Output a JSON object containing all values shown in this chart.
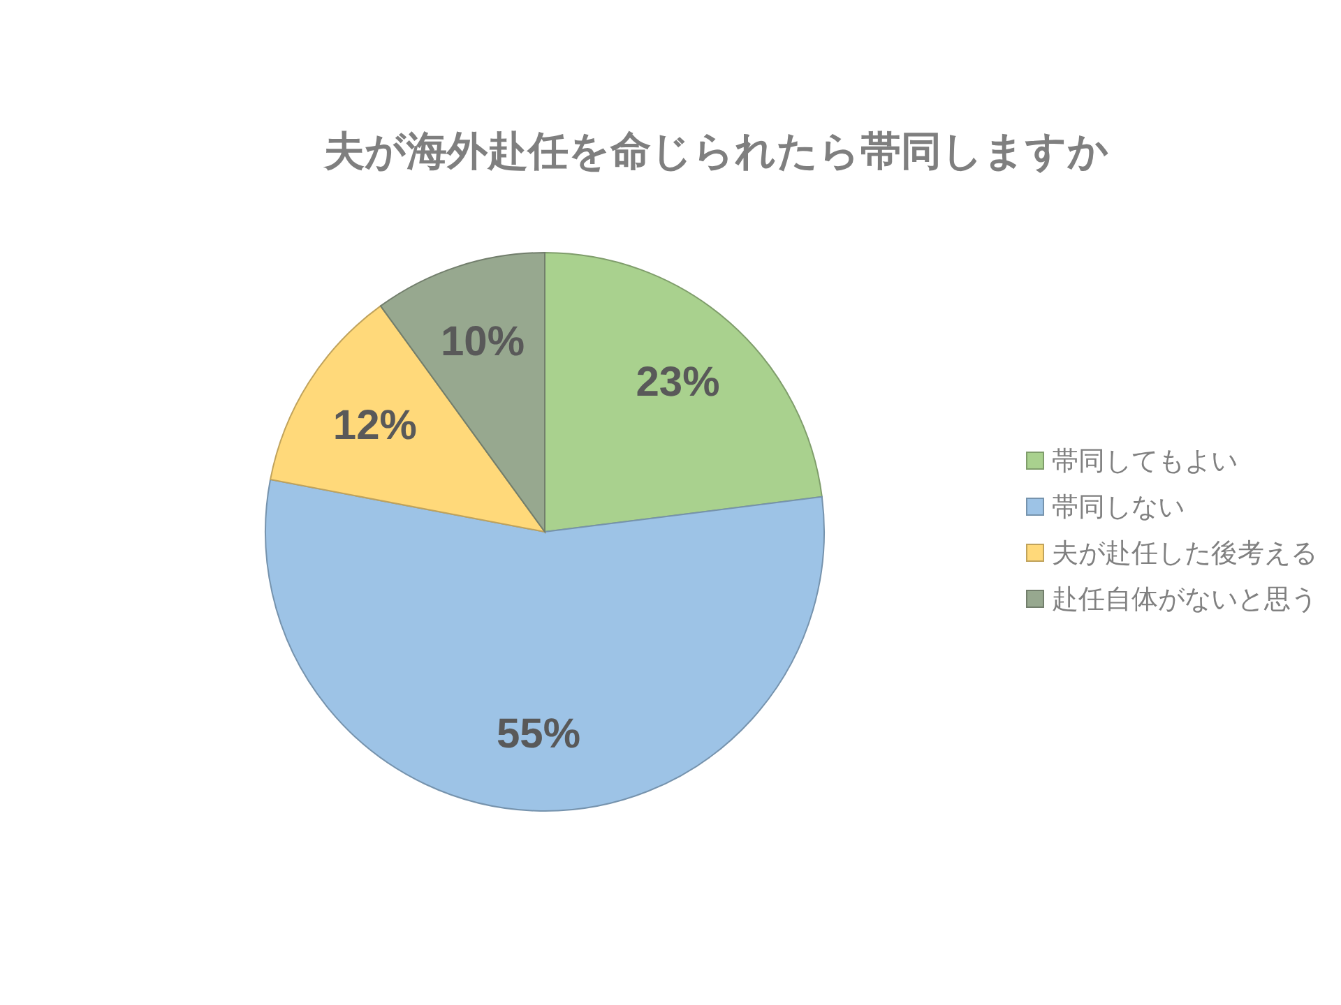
{
  "chart_data": {
    "type": "pie",
    "title": "夫が海外赴任を命じられたら帯同しますか",
    "categories": [
      "帯同してもよい",
      "帯同しない",
      "夫が赴任した後考える",
      "赴任自体がないと思う"
    ],
    "values": [
      23,
      55,
      12,
      10
    ],
    "colors": [
      "#a9d18e",
      "#9dc3e6",
      "#ffd97a",
      "#97a88f"
    ],
    "value_labels": [
      "23%",
      "55%",
      "12%",
      "10%"
    ],
    "legend": "right"
  }
}
